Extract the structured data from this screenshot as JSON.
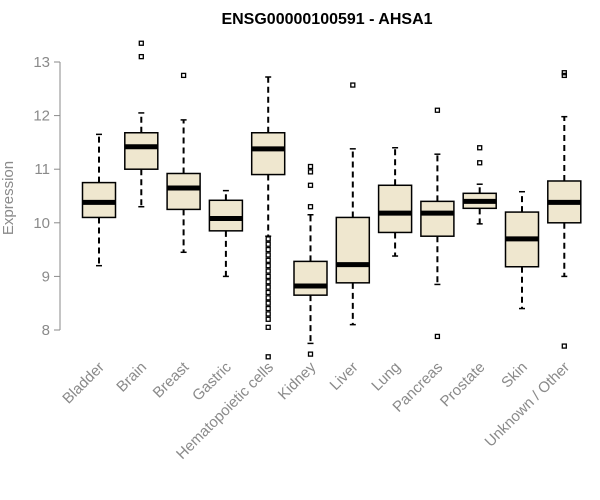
{
  "chart_data": {
    "type": "boxplot",
    "title": "ENSG00000100591 - AHSA1",
    "xlabel": "",
    "ylabel": "Expression",
    "ylim": [
      7.4,
      13.5
    ],
    "yticks": [
      8,
      9,
      10,
      11,
      12,
      13
    ],
    "categories": [
      "Bladder",
      "Brain",
      "Breast",
      "Gastric",
      "Hematopoietic cells",
      "Kidney",
      "Liver",
      "Lung",
      "Pancreas",
      "Prostate",
      "Skin",
      "Unknown / Other"
    ],
    "boxes": [
      {
        "min": 9.2,
        "q1": 10.1,
        "median": 10.38,
        "q3": 10.75,
        "max": 11.65,
        "outliers": []
      },
      {
        "min": 10.3,
        "q1": 11.0,
        "median": 11.42,
        "q3": 11.68,
        "max": 12.05,
        "outliers": [
          13.1,
          13.35
        ]
      },
      {
        "min": 9.45,
        "q1": 10.25,
        "median": 10.65,
        "q3": 10.92,
        "max": 11.92,
        "outliers": [
          12.75
        ]
      },
      {
        "min": 9.0,
        "q1": 9.85,
        "median": 10.08,
        "q3": 10.42,
        "max": 10.6,
        "outliers": []
      },
      {
        "min": 9.75,
        "q1": 10.9,
        "median": 11.38,
        "q3": 11.68,
        "max": 12.72,
        "outliers": [
          9.7,
          9.6,
          9.5,
          9.4,
          9.3,
          9.2,
          9.1,
          9.0,
          8.9,
          8.8,
          8.7,
          8.6,
          8.5,
          8.4,
          8.3,
          8.2,
          8.05,
          7.5
        ]
      },
      {
        "min": 7.75,
        "q1": 8.65,
        "median": 8.82,
        "q3": 9.28,
        "max": 10.15,
        "outliers": [
          7.55,
          10.3,
          10.7,
          10.95,
          11.05
        ]
      },
      {
        "min": 8.1,
        "q1": 8.88,
        "median": 9.22,
        "q3": 10.1,
        "max": 11.38,
        "outliers": [
          12.57
        ]
      },
      {
        "min": 9.38,
        "q1": 9.82,
        "median": 10.18,
        "q3": 10.7,
        "max": 11.4,
        "outliers": []
      },
      {
        "min": 8.85,
        "q1": 9.75,
        "median": 10.18,
        "q3": 10.4,
        "max": 11.28,
        "outliers": [
          7.88,
          12.1
        ]
      },
      {
        "min": 9.98,
        "q1": 10.27,
        "median": 10.4,
        "q3": 10.55,
        "max": 10.72,
        "outliers": [
          11.12,
          11.4
        ]
      },
      {
        "min": 8.4,
        "q1": 9.18,
        "median": 9.7,
        "q3": 10.2,
        "max": 10.58,
        "outliers": []
      },
      {
        "min": 9.0,
        "q1": 10.0,
        "median": 10.38,
        "q3": 10.78,
        "max": 11.98,
        "outliers": [
          7.7,
          12.75,
          12.8
        ]
      }
    ]
  }
}
